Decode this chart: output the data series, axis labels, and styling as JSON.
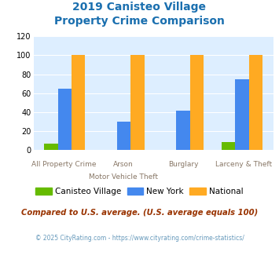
{
  "title_line1": "2019 Canisteo Village",
  "title_line2": "Property Crime Comparison",
  "title_color": "#1a6faf",
  "cat_labels_row1": [
    "All Property Crime",
    "Arson",
    "Burglary",
    "Larceny & Theft"
  ],
  "cat_labels_row2": [
    "",
    "Motor Vehicle Theft",
    "",
    ""
  ],
  "canisteo": [
    7,
    0,
    0,
    9
  ],
  "new_york": [
    65,
    30,
    42,
    75
  ],
  "national": [
    100,
    100,
    100,
    100
  ],
  "color_canisteo": "#66bb00",
  "color_new_york": "#4488ee",
  "color_national": "#ffaa22",
  "bg_color": "#ddeeff",
  "ylim": [
    0,
    120
  ],
  "yticks": [
    0,
    20,
    40,
    60,
    80,
    100,
    120
  ],
  "legend_labels": [
    "Canisteo Village",
    "New York",
    "National"
  ],
  "footnote1": "Compared to U.S. average. (U.S. average equals 100)",
  "footnote2": "© 2025 CityRating.com - https://www.cityrating.com/crime-statistics/",
  "footnote1_color": "#993300",
  "footnote2_color": "#6699bb"
}
